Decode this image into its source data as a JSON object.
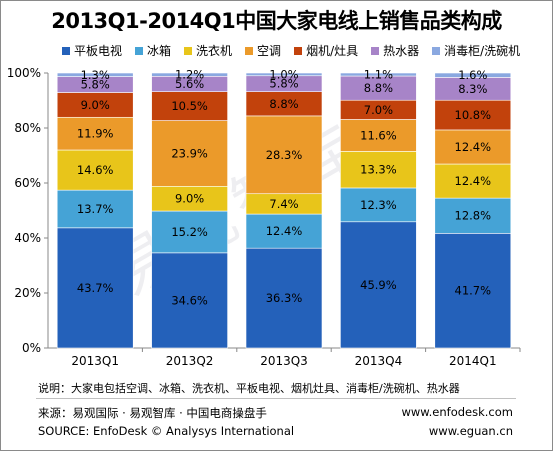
{
  "title": "2013Q1-2014Q1中国大家电线上销售品类构成",
  "watermark": "易观智库",
  "note": "说明：大家电包括空调、冰箱、洗衣机、平板电视、烟机灶具、消毒柜/洗碗机、热水器",
  "source_cn": "来源：易观国际 · 易观智库 · 中国电商操盘手",
  "source_en": "SOURCE: EnfoDesk © Analysys International",
  "url1": "www.enfodesk.com",
  "url2": "www.eguan.cn",
  "chart_data": {
    "type": "bar",
    "stacked": true,
    "percent": true,
    "categories": [
      "2013Q1",
      "2013Q2",
      "2013Q3",
      "2013Q4",
      "2014Q1"
    ],
    "ylim": [
      0,
      100
    ],
    "yticks": [
      "0%",
      "20%",
      "40%",
      "60%",
      "80%",
      "100%"
    ],
    "legend_position": "top",
    "series": [
      {
        "name": "平板电视",
        "color": "#2461ba",
        "values": [
          43.7,
          34.6,
          36.3,
          45.9,
          41.7
        ],
        "labels": [
          "43.7%",
          "34.6%",
          "36.3%",
          "45.9%",
          "41.7%"
        ]
      },
      {
        "name": "冰箱",
        "color": "#45a3d6",
        "values": [
          13.7,
          15.2,
          12.4,
          12.3,
          12.8
        ],
        "labels": [
          "13.7%",
          "15.2%",
          "12.4%",
          "12.3%",
          "12.8%"
        ]
      },
      {
        "name": "洗衣机",
        "color": "#e8c51a",
        "values": [
          14.6,
          9.0,
          7.4,
          13.3,
          12.4
        ],
        "labels": [
          "14.6%",
          "9.0%",
          "7.4%",
          "13.3%",
          "12.4%"
        ]
      },
      {
        "name": "空调",
        "color": "#eb9a2a",
        "values": [
          11.9,
          23.9,
          28.3,
          11.6,
          12.4
        ],
        "labels": [
          "11.9%",
          "23.9%",
          "28.3%",
          "11.6%",
          "12.4%"
        ]
      },
      {
        "name": "烟机/灶具",
        "color": "#c2420c",
        "values": [
          9.0,
          10.5,
          8.8,
          7.0,
          10.8
        ],
        "labels": [
          "9.0%",
          "10.5%",
          "8.8%",
          "7.0%",
          "10.8%"
        ]
      },
      {
        "name": "热水器",
        "color": "#a784c8",
        "values": [
          5.8,
          5.6,
          5.8,
          8.8,
          8.3
        ],
        "labels": [
          "5.8%",
          "5.6%",
          "5.8%",
          "8.8%",
          "8.3%"
        ]
      },
      {
        "name": "消毒柜/洗碗机",
        "color": "#8aa8e0",
        "values": [
          1.3,
          1.2,
          1.0,
          1.1,
          1.6
        ],
        "labels": [
          "1.3%",
          "1.2%",
          "1.0%",
          "1.1%",
          "1.6%"
        ]
      }
    ]
  }
}
